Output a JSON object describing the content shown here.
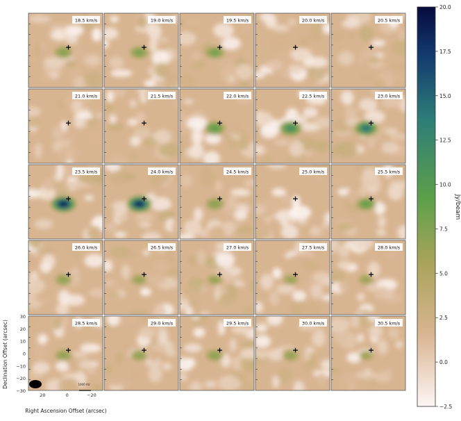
{
  "chart_data": {
    "type": "heatmap",
    "layout": {
      "rows": 5,
      "cols": 5
    },
    "panels": [
      {
        "velocity": "18.5 km/s",
        "peak": 7.5
      },
      {
        "velocity": "19.0 km/s",
        "peak": 7.8
      },
      {
        "velocity": "19.5 km/s",
        "peak": 8.2
      },
      {
        "velocity": "20.0 km/s",
        "peak": 0
      },
      {
        "velocity": "20.5 km/s",
        "peak": 0
      },
      {
        "velocity": "21.0 km/s",
        "peak": 0
      },
      {
        "velocity": "21.5 km/s",
        "peak": 0
      },
      {
        "velocity": "22.0 km/s",
        "peak": 9.8
      },
      {
        "velocity": "22.5 km/s",
        "peak": 12.2
      },
      {
        "velocity": "23.0 km/s",
        "peak": 14.8
      },
      {
        "velocity": "23.5 km/s",
        "peak": 19.5
      },
      {
        "velocity": "24.0 km/s",
        "peak": 19.0
      },
      {
        "velocity": "24.5 km/s",
        "peak": 7.5
      },
      {
        "velocity": "25.0 km/s",
        "peak": 0
      },
      {
        "velocity": "25.5 km/s",
        "peak": 9.2
      },
      {
        "velocity": "26.0 km/s",
        "peak": 6.8
      },
      {
        "velocity": "26.5 km/s",
        "peak": 6.2
      },
      {
        "velocity": "27.0 km/s",
        "peak": 6.2
      },
      {
        "velocity": "27.5 km/s",
        "peak": 6.0
      },
      {
        "velocity": "28.0 km/s",
        "peak": 6.0
      },
      {
        "velocity": "28.5 km/s",
        "peak": 6.8
      },
      {
        "velocity": "29.0 km/s",
        "peak": 6.8
      },
      {
        "velocity": "29.5 km/s",
        "peak": 7.2
      },
      {
        "velocity": "30.0 km/s",
        "peak": 6.5
      },
      {
        "velocity": "30.5 km/s",
        "peak": 5.8
      }
    ],
    "xlabel": "Right Ascension Offset (arcsec)",
    "ylabel": "Declination Offset (arcsec)",
    "xticks": [
      "20",
      "0",
      "−20"
    ],
    "yticks": [
      "30",
      "20",
      "10",
      "0",
      "−10",
      "−20",
      "−30"
    ],
    "scalebar_label": "1000 AU",
    "colorbar": {
      "label": "Jy/beam",
      "range": [
        -2.5,
        20.0
      ],
      "ticks": [
        "20.0",
        "17.5",
        "15.0",
        "12.5",
        "10.0",
        "7.5",
        "5.0",
        "2.5",
        "0.0",
        "−2.5"
      ],
      "colors": [
        "#fdf6f4",
        "#d9b592",
        "#a9a45a",
        "#5da04a",
        "#2d7d78",
        "#123a6e",
        "#070b3e"
      ]
    },
    "source_marker": "+",
    "grid": false
  }
}
